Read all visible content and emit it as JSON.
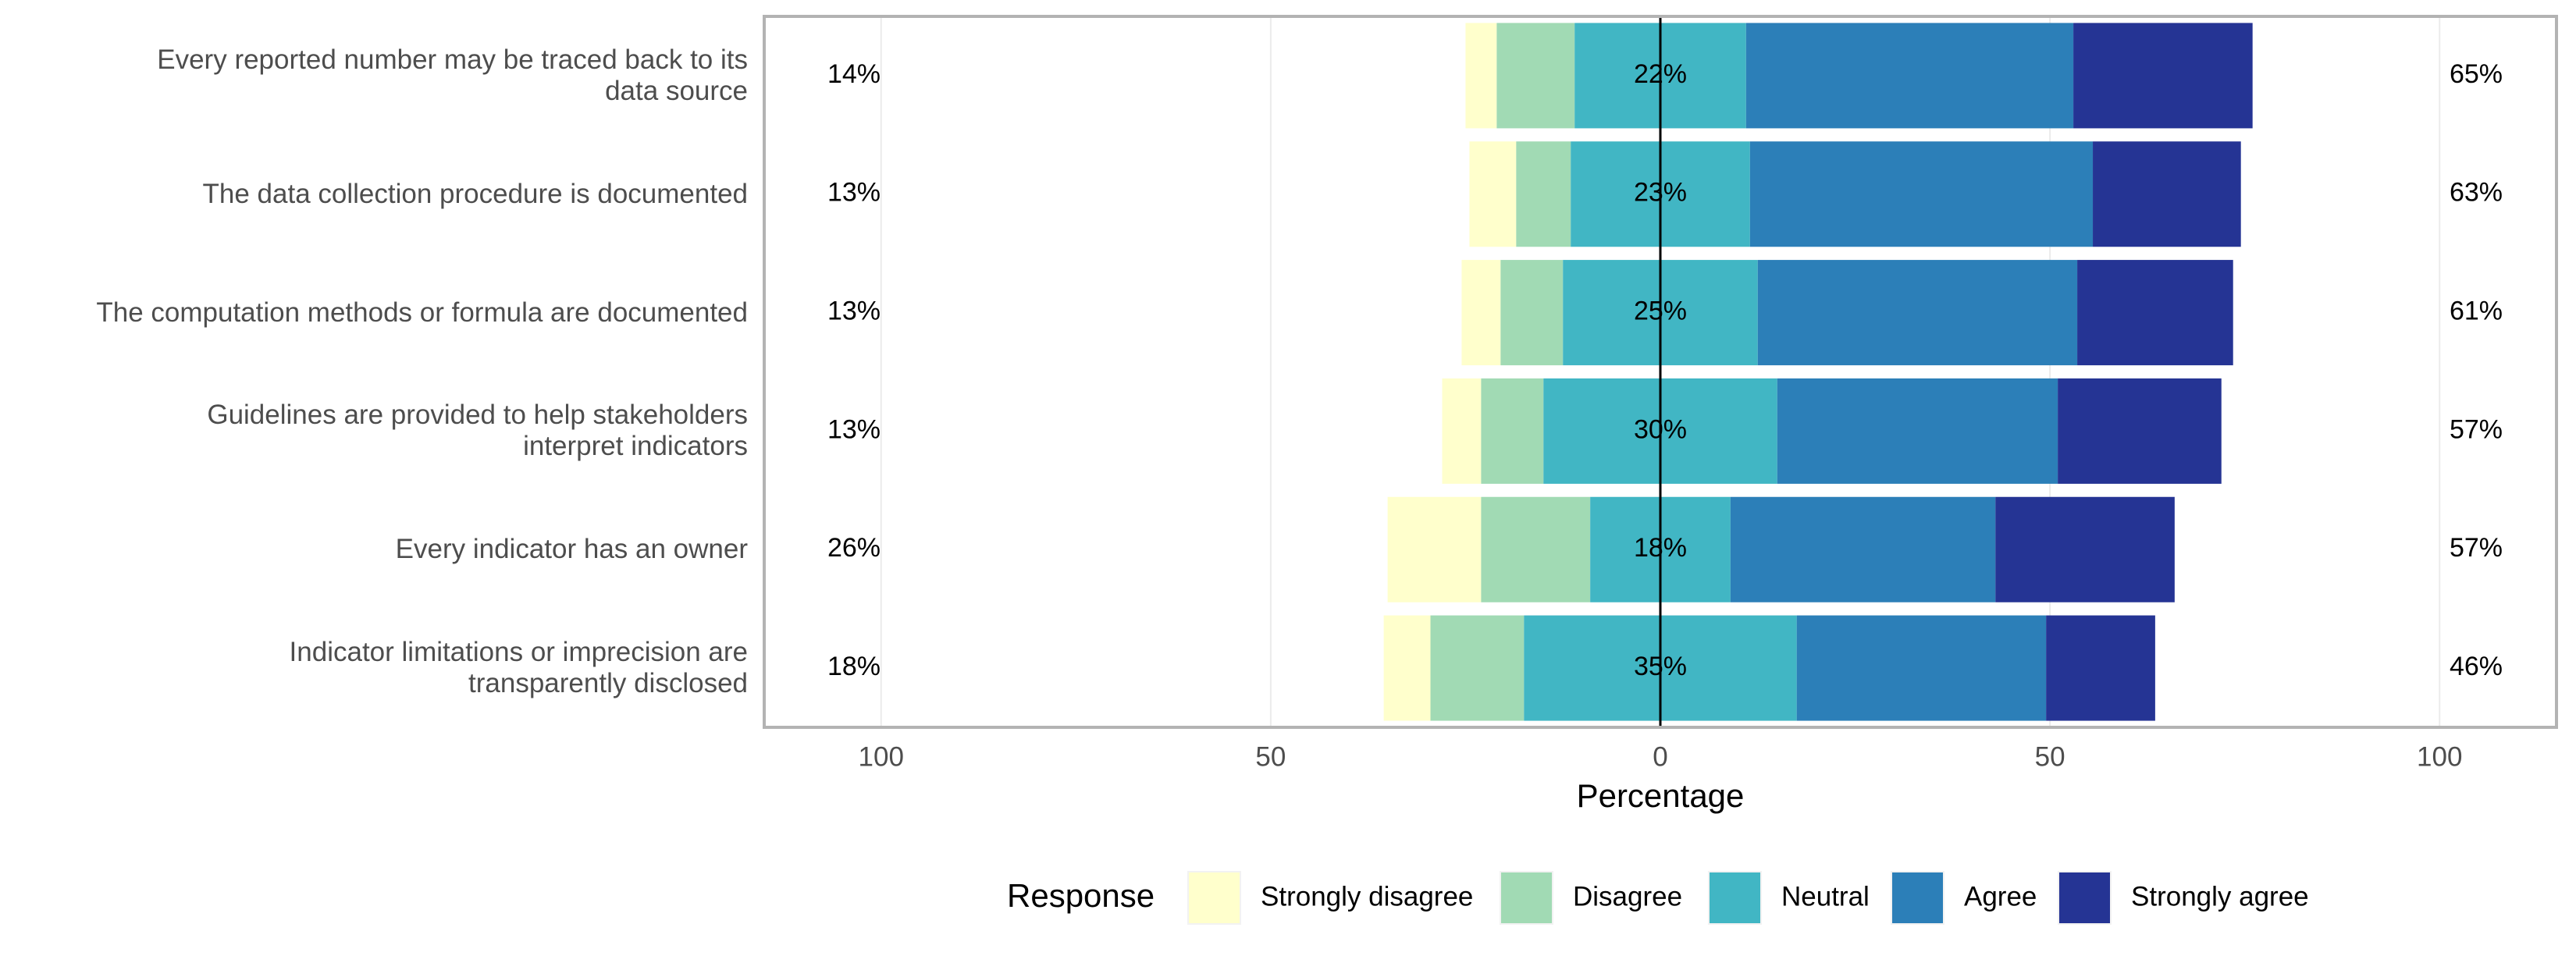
{
  "chart_data": {
    "type": "diverging_bar",
    "categories": [
      "Every reported number may be traced back to its\ndata source",
      "The data collection procedure is documented",
      "The computation methods or formula are documented",
      "Guidelines are provided to help stakeholders\ninterpret indicators",
      "Every indicator has an owner",
      "Indicator limitations or imprecision are\ntransparently disclosed"
    ],
    "series": [
      {
        "name": "Strongly disagree",
        "color": "#ffffcc",
        "values": [
          4,
          6,
          5,
          5,
          12,
          6
        ]
      },
      {
        "name": "Disagree",
        "color": "#a1dab4",
        "values": [
          10,
          7,
          8,
          8,
          14,
          12
        ]
      },
      {
        "name": "Neutral",
        "color": "#41b6c4",
        "values": [
          22,
          23,
          25,
          30,
          18,
          35
        ],
        "value_labels": [
          "22%",
          "23%",
          "25%",
          "30%",
          "18%",
          "35%"
        ]
      },
      {
        "name": "Agree",
        "color": "#2c7fb8",
        "values": [
          42,
          44,
          41,
          36,
          34,
          32
        ]
      },
      {
        "name": "Strongly agree",
        "color": "#253494",
        "values": [
          23,
          19,
          20,
          21,
          23,
          14
        ]
      }
    ],
    "left_totals": {
      "values": [
        14,
        13,
        13,
        13,
        26,
        18
      ],
      "value_labels": [
        "14%",
        "13%",
        "13%",
        "13%",
        "26%",
        "18%"
      ]
    },
    "right_totals": {
      "values": [
        65,
        63,
        61,
        57,
        57,
        46
      ],
      "value_labels": [
        "65%",
        "63%",
        "61%",
        "57%",
        "57%",
        "46%"
      ]
    },
    "xlabel": "Percentage",
    "xlim": [
      -115,
      115
    ],
    "xticks": [
      {
        "value": -100,
        "label": "100"
      },
      {
        "value": -50,
        "label": "50"
      },
      0,
      50,
      100
    ],
    "legend_title": "Response",
    "legend_position": "bottom",
    "grid": true
  }
}
